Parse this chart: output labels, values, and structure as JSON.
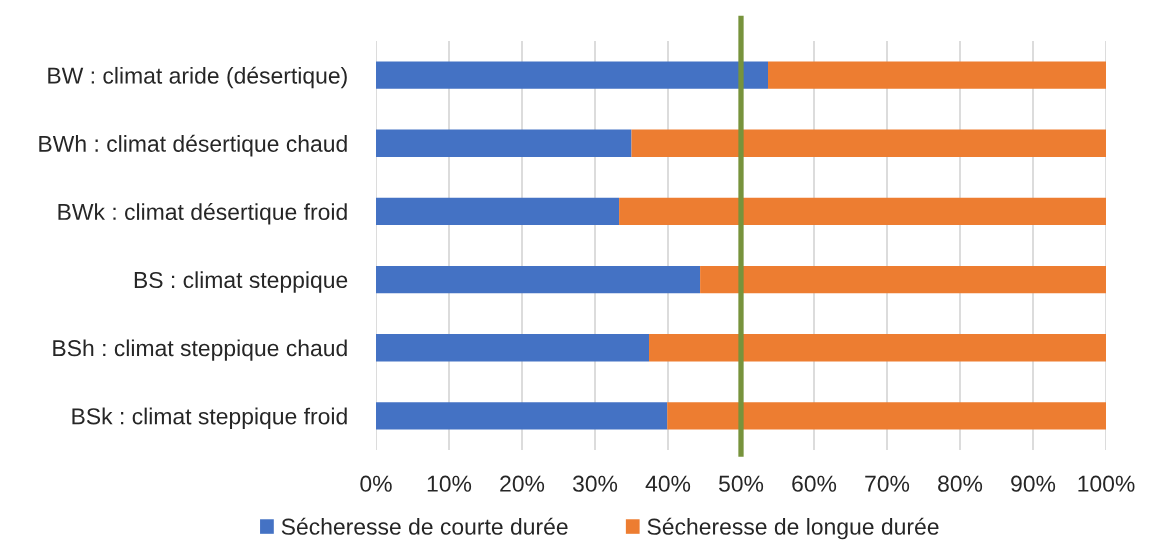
{
  "chart_data": {
    "type": "bar",
    "orientation": "horizontal",
    "stacked": true,
    "categories": [
      "BW : climat aride (désertique)",
      "BWh : climat désertique chaud",
      "BWk : climat désertique froid",
      "BS : climat steppique",
      "BSh : climat steppique chaud",
      "BSk : climat steppique froid"
    ],
    "series": [
      {
        "name": "Sécheresse de courte durée",
        "color": "#4472c4",
        "values": [
          53.7,
          35.0,
          33.3,
          44.4,
          37.4,
          39.9
        ]
      },
      {
        "name": "Sécheresse de longue durée",
        "color": "#ed7d31",
        "values": [
          46.3,
          65.0,
          66.7,
          55.6,
          62.6,
          60.1
        ]
      }
    ],
    "xlim": [
      0,
      100
    ],
    "xticks": [
      {
        "value": 0,
        "label": "0%"
      },
      {
        "value": 10,
        "label": "10%"
      },
      {
        "value": 20,
        "label": "20%"
      },
      {
        "value": 30,
        "label": "30%"
      },
      {
        "value": 40,
        "label": "40%"
      },
      {
        "value": 50,
        "label": "50%"
      },
      {
        "value": 60,
        "label": "60%"
      },
      {
        "value": 70,
        "label": "70%"
      },
      {
        "value": 80,
        "label": "80%"
      },
      {
        "value": 90,
        "label": "90%"
      },
      {
        "value": 100,
        "label": "100%"
      }
    ],
    "ref_lines": [
      {
        "axis": "x",
        "value": 50,
        "color": "#77933c"
      }
    ],
    "grid": "x",
    "legend": "bottom"
  }
}
